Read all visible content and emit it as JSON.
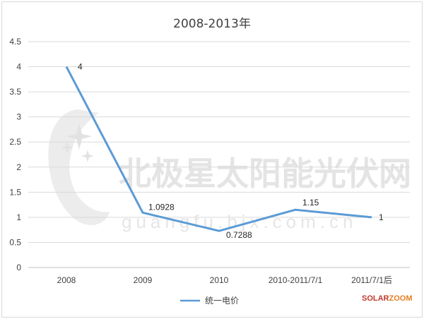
{
  "chart_data": {
    "type": "line",
    "title": "2008-2013年",
    "categories": [
      "2008",
      "2009",
      "2010",
      "2010-2011/7/1",
      "2011/7/1后"
    ],
    "series": [
      {
        "name": "统一电价",
        "values": [
          4,
          1.0928,
          0.7288,
          1.15,
          1
        ],
        "labels": [
          "4",
          "1.0928",
          "0.7288",
          "1.15",
          "1"
        ]
      }
    ],
    "ylim": [
      0,
      4.5
    ],
    "yticks": [
      "0",
      "0.5",
      "1",
      "1.5",
      "2",
      "2.5",
      "3",
      "3.5",
      "4",
      "4.5"
    ],
    "grid": true,
    "legend": "bottom",
    "colors": {
      "series": "#5b9bd5",
      "grid": "#d9d9d9",
      "axis": "#bfbfbf",
      "brand_red": "#c0392b",
      "brand_orange": "#e67e22"
    }
  },
  "watermark": {
    "text": "北极星太阳能光伏网",
    "url": "guangfu.bjx.com.cn",
    "logo": "star-logo"
  },
  "brand": {
    "part1": "SOLAR",
    "part2": "ZOOM"
  }
}
